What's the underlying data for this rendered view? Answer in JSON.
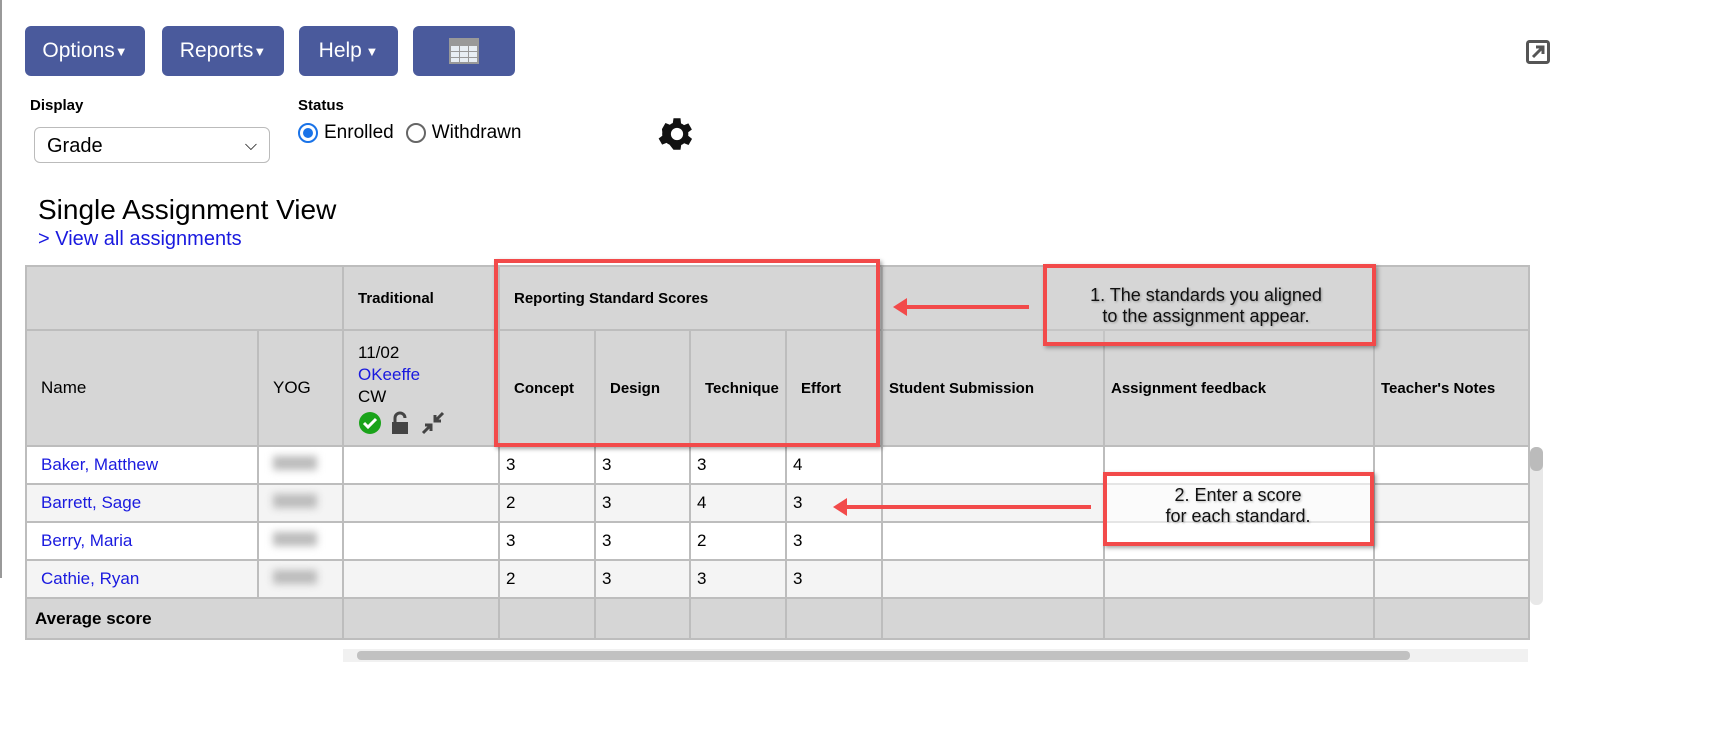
{
  "toolbar": {
    "options": "Options",
    "reports": "Reports",
    "help": "Help",
    "grid_icon": "grid-view-icon"
  },
  "display": {
    "label": "Display",
    "value": "Grade"
  },
  "status": {
    "label": "Status",
    "options": [
      "Enrolled",
      "Withdrawn"
    ],
    "selected": "Enrolled"
  },
  "page": {
    "title": "Single Assignment View",
    "link": "> View all assignments"
  },
  "table": {
    "group_headers": {
      "traditional": "Traditional",
      "standards": "Reporting Standard Scores"
    },
    "headers": {
      "name": "Name",
      "yog": "YOG",
      "student_submission": "Student Submission",
      "assignment_feedback": "Assignment feedback",
      "teachers_notes": "Teacher's Notes"
    },
    "assignment": {
      "date": "11/02",
      "teacher": "OKeeffe",
      "category": "CW"
    },
    "standards": [
      "Concept",
      "Design",
      "Technique",
      "Effort"
    ],
    "rows": [
      {
        "name": "Baker, Matthew",
        "scores": [
          "3",
          "3",
          "3",
          "4"
        ]
      },
      {
        "name": "Barrett, Sage",
        "scores": [
          "2",
          "3",
          "4",
          "3"
        ]
      },
      {
        "name": "Berry, Maria",
        "scores": [
          "3",
          "3",
          "2",
          "3"
        ]
      },
      {
        "name": "Cathie, Ryan",
        "scores": [
          "2",
          "3",
          "3",
          "3"
        ]
      }
    ],
    "average_label": "Average score"
  },
  "annotations": {
    "note1": "1. The standards you aligned\nto the assignment appear.",
    "note2": "2. Enter a score\nfor each standard."
  },
  "colors": {
    "button": "#4a5a9c",
    "annotation": "#f24a4a",
    "link": "#1a1adf"
  }
}
